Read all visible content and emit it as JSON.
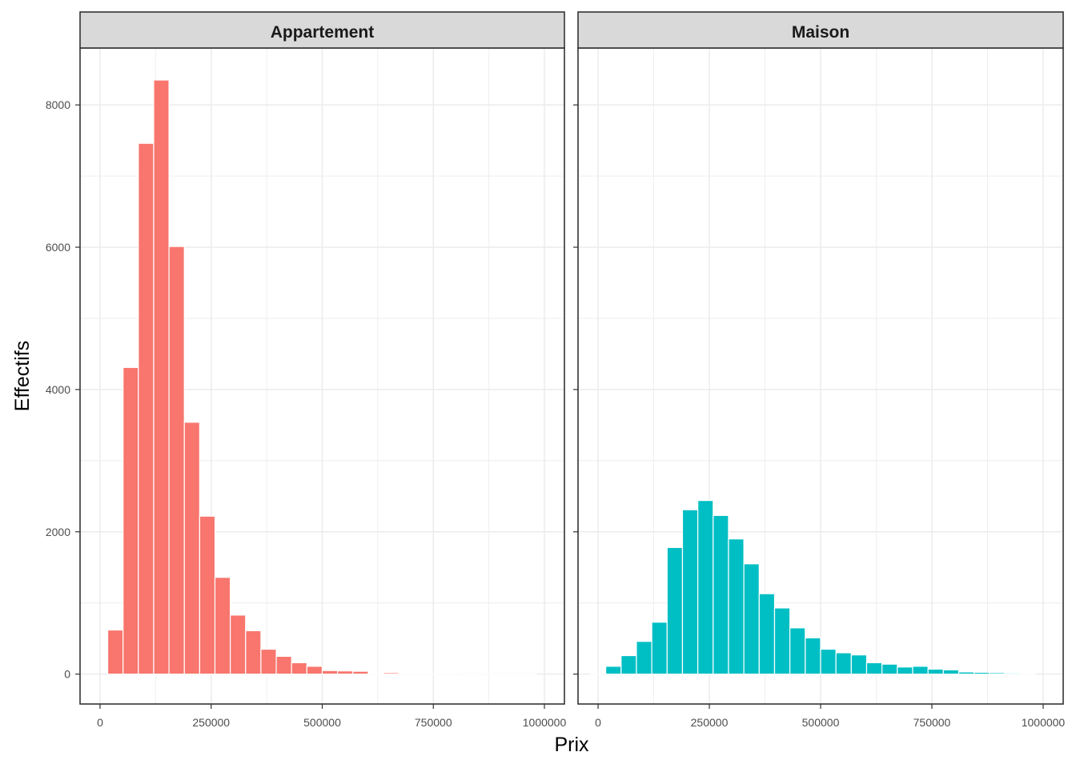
{
  "figure": {
    "xlabel": "Prix",
    "ylabel": "Effectifs"
  },
  "colors": {
    "Appartement": "#F8766D",
    "Maison": "#00BFC4",
    "strip_bg": "#D9D9D9",
    "grid": "#EBEBEB"
  },
  "chart_data": {
    "type": "bar",
    "title": "",
    "xlabel": "Prix",
    "ylabel": "Effectifs",
    "xlim": [
      -45000,
      1045000
    ],
    "ylim": [
      -420,
      8800
    ],
    "xticks": [
      0,
      250000,
      500000,
      750000,
      1000000
    ],
    "yticks": [
      0,
      2000,
      4000,
      6000,
      8000
    ],
    "grid": true,
    "bin_width": 34480,
    "panels": [
      {
        "name": "Appartement",
        "color": "#F8766D",
        "bins": [
          {
            "x": 34500,
            "y": 620
          },
          {
            "x": 69000,
            "y": 4310
          },
          {
            "x": 103400,
            "y": 7460
          },
          {
            "x": 137900,
            "y": 8350
          },
          {
            "x": 172400,
            "y": 6010
          },
          {
            "x": 206900,
            "y": 3540
          },
          {
            "x": 241400,
            "y": 2220
          },
          {
            "x": 275800,
            "y": 1360
          },
          {
            "x": 310300,
            "y": 830
          },
          {
            "x": 344800,
            "y": 610
          },
          {
            "x": 379300,
            "y": 350
          },
          {
            "x": 413800,
            "y": 250
          },
          {
            "x": 448200,
            "y": 160
          },
          {
            "x": 482700,
            "y": 110
          },
          {
            "x": 517200,
            "y": 50
          },
          {
            "x": 551700,
            "y": 45
          },
          {
            "x": 586200,
            "y": 40
          },
          {
            "x": 620600,
            "y": 5
          },
          {
            "x": 655100,
            "y": 20
          },
          {
            "x": 689600,
            "y": 3
          },
          {
            "x": 724100,
            "y": 2
          },
          {
            "x": 758600,
            "y": 2
          },
          {
            "x": 793000,
            "y": 2
          },
          {
            "x": 827500,
            "y": 1
          },
          {
            "x": 862000,
            "y": 1
          },
          {
            "x": 896500,
            "y": 1
          },
          {
            "x": 931000,
            "y": 1
          },
          {
            "x": 965400,
            "y": 1
          }
        ]
      },
      {
        "name": "Maison",
        "color": "#00BFC4",
        "bins": [
          {
            "x": 0,
            "y": 3
          },
          {
            "x": 34500,
            "y": 110
          },
          {
            "x": 69000,
            "y": 260
          },
          {
            "x": 103400,
            "y": 460
          },
          {
            "x": 137900,
            "y": 730
          },
          {
            "x": 172400,
            "y": 1780
          },
          {
            "x": 206900,
            "y": 2310
          },
          {
            "x": 241400,
            "y": 2440
          },
          {
            "x": 275800,
            "y": 2230
          },
          {
            "x": 310300,
            "y": 1900
          },
          {
            "x": 344800,
            "y": 1550
          },
          {
            "x": 379300,
            "y": 1130
          },
          {
            "x": 413800,
            "y": 930
          },
          {
            "x": 448200,
            "y": 650
          },
          {
            "x": 482700,
            "y": 510
          },
          {
            "x": 517200,
            "y": 350
          },
          {
            "x": 551700,
            "y": 300
          },
          {
            "x": 586200,
            "y": 270
          },
          {
            "x": 620600,
            "y": 160
          },
          {
            "x": 655100,
            "y": 140
          },
          {
            "x": 689600,
            "y": 100
          },
          {
            "x": 724100,
            "y": 110
          },
          {
            "x": 758600,
            "y": 70
          },
          {
            "x": 793000,
            "y": 60
          },
          {
            "x": 827500,
            "y": 30
          },
          {
            "x": 862000,
            "y": 25
          },
          {
            "x": 896500,
            "y": 20
          },
          {
            "x": 931000,
            "y": 15
          },
          {
            "x": 965400,
            "y": 3
          }
        ]
      }
    ]
  }
}
